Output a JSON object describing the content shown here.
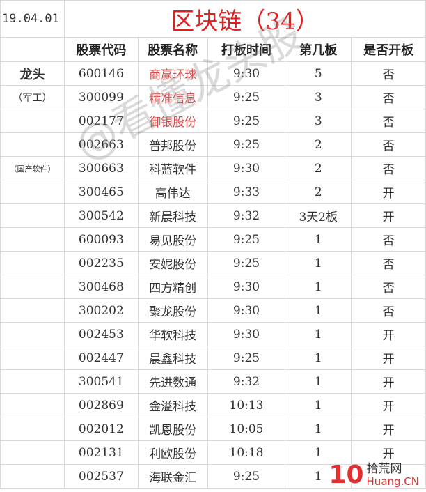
{
  "date": "19.04.01",
  "title": "区块链（34）",
  "headers": [
    "",
    "股票代码",
    "股票名称",
    "打板时间",
    "第几板",
    "是否开板"
  ],
  "labels": {
    "leader": "龙头",
    "military": "（军工）",
    "software": "（国产软件）"
  },
  "rows": [
    [
      "600146",
      "商赢环球",
      "9:30",
      "5",
      "否"
    ],
    [
      "300099",
      "精准信息",
      "9:25",
      "3",
      "否"
    ],
    [
      "002177",
      "御银股份",
      "9:25",
      "3",
      "否"
    ],
    [
      "002663",
      "普邦股份",
      "9:25",
      "2",
      "否"
    ],
    [
      "300663",
      "科蓝软件",
      "9:30",
      "2",
      "否"
    ],
    [
      "300465",
      "高伟达",
      "9:33",
      "2",
      "开"
    ],
    [
      "300542",
      "新晨科技",
      "9:32",
      "3天2板",
      "开"
    ],
    [
      "600093",
      "易见股份",
      "9:25",
      "1",
      "否"
    ],
    [
      "002235",
      "安妮股份",
      "9:25",
      "1",
      "否"
    ],
    [
      "300468",
      "四方精创",
      "9:30",
      "1",
      "否"
    ],
    [
      "300202",
      "聚龙股份",
      "9:30",
      "1",
      "否"
    ],
    [
      "002453",
      "华软科技",
      "9:30",
      "1",
      "开"
    ],
    [
      "002447",
      "晨鑫科技",
      "9:25",
      "1",
      "开"
    ],
    [
      "300541",
      "先进数通",
      "9:32",
      "1",
      "开"
    ],
    [
      "002869",
      "金溢科技",
      "10:13",
      "1",
      "开"
    ],
    [
      "002012",
      "凯恩股份",
      "10:05",
      "1",
      "开"
    ],
    [
      "002131",
      "利欧股份",
      "10:18",
      "1",
      "开"
    ],
    [
      "002537",
      "海联金汇",
      "9:25",
      "1",
      ""
    ]
  ],
  "highlight_color": "#e04848",
  "watermark": "@看懂龙头股",
  "logo": {
    "num": "10",
    "cn": "拾荒网",
    "en": "Huang.CN"
  }
}
